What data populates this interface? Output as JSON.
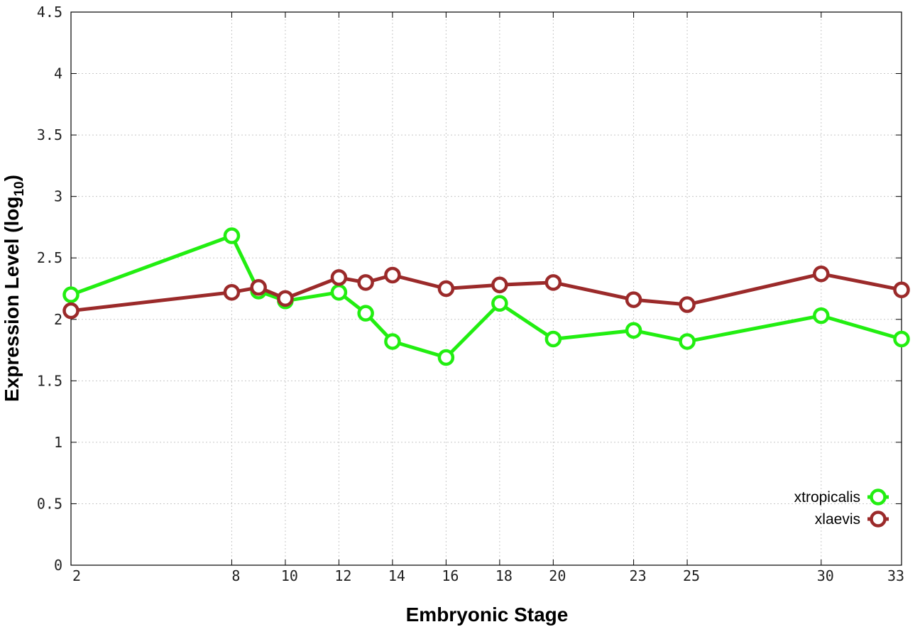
{
  "chart_data": {
    "type": "line",
    "xlabel": "Embryonic Stage",
    "ylabel_main": "Expression Level (log",
    "ylabel_sub": "10",
    "ylabel_close": ")",
    "categories": [
      "2",
      "8",
      "9",
      "10",
      "12",
      "13",
      "14",
      "16",
      "18",
      "20",
      "23",
      "25",
      "30",
      "33"
    ],
    "x_ticks": [
      "2",
      "8",
      "10",
      "12",
      "14",
      "16",
      "18",
      "20",
      "23",
      "25",
      "30",
      "33"
    ],
    "ylim": [
      0,
      4.5
    ],
    "y_ticks": [
      "0",
      "0.5",
      "1",
      "1.5",
      "2",
      "2.5",
      "3",
      "3.5",
      "4",
      "4.5"
    ],
    "grid": true,
    "legend_position": "bottom-right",
    "series": [
      {
        "name": "xtropicalis",
        "color": "#22ee11",
        "values": [
          2.2,
          2.68,
          2.23,
          2.15,
          2.22,
          2.05,
          1.82,
          1.69,
          2.13,
          1.84,
          1.91,
          1.82,
          2.03,
          1.84
        ]
      },
      {
        "name": "xlaevis",
        "color": "#9b2a2a",
        "values": [
          2.07,
          2.22,
          2.26,
          2.17,
          2.34,
          2.3,
          2.36,
          2.25,
          2.28,
          2.3,
          2.16,
          2.12,
          2.37,
          2.24
        ]
      }
    ]
  }
}
